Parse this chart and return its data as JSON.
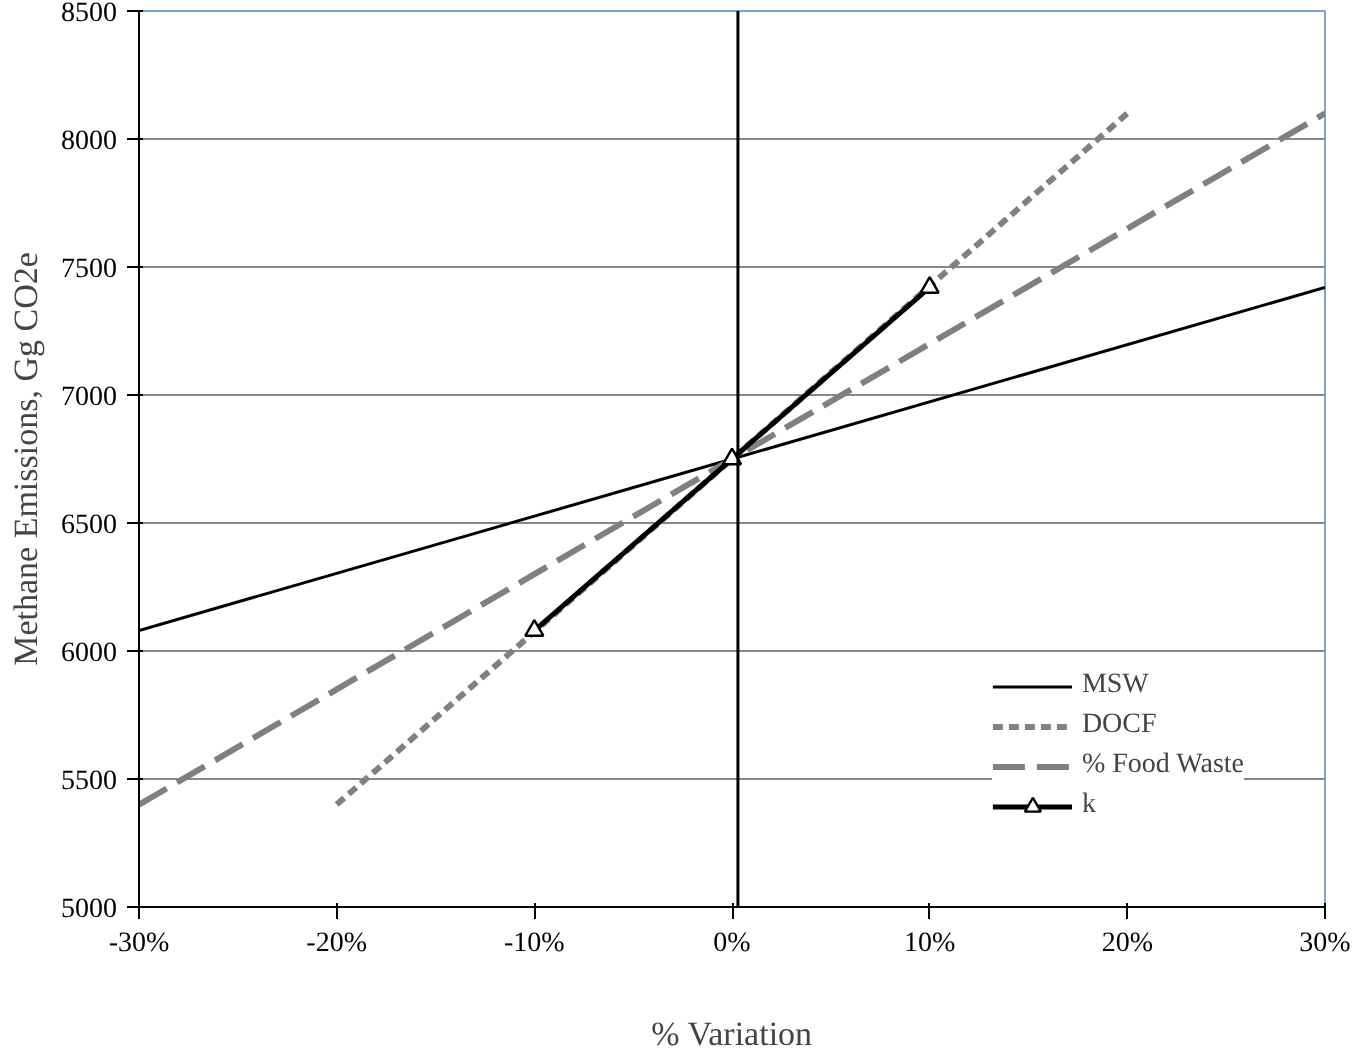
{
  "chart_data": {
    "type": "line",
    "xlabel": "% Variation",
    "ylabel": "Methane Emissions, Gg CO2e",
    "series": [
      {
        "name": "MSW",
        "color": "#000000",
        "x": [
          -30,
          0,
          30
        ],
        "values": [
          6080,
          6750,
          7420
        ],
        "line_style": "solid",
        "marker": "none"
      },
      {
        "name": "DOCF",
        "color": "#808080",
        "x": [
          -20,
          0,
          20
        ],
        "values": [
          5400,
          6750,
          8100
        ],
        "line_style": "dotted",
        "marker": "none"
      },
      {
        "name": "% Food Waste",
        "color": "#808080",
        "x": [
          -30,
          0,
          30
        ],
        "values": [
          5400,
          6750,
          8100
        ],
        "line_style": "dashed",
        "marker": "none"
      },
      {
        "name": "k",
        "color": "#000000",
        "x": [
          -10,
          0,
          10
        ],
        "values": [
          6080,
          6750,
          7420
        ],
        "line_style": "solid",
        "marker": "triangle"
      }
    ],
    "xlim": [
      -30,
      30
    ],
    "ylim": [
      5000,
      8500
    ],
    "xticks": [
      {
        "value": -30,
        "label": "-30%"
      },
      {
        "value": -20,
        "label": "-20%"
      },
      {
        "value": -10,
        "label": "-10%"
      },
      {
        "value": 0,
        "label": "0%"
      },
      {
        "value": 10,
        "label": "10%"
      },
      {
        "value": 20,
        "label": "20%"
      },
      {
        "value": 30,
        "label": "30%"
      }
    ],
    "yticks": [
      5000,
      5500,
      6000,
      6500,
      7000,
      7500,
      8000,
      8500
    ],
    "ref_lines": [
      {
        "axis": "x",
        "value": 0.3,
        "color": "#000000"
      }
    ],
    "grid": "y",
    "legend": "bottom right"
  }
}
